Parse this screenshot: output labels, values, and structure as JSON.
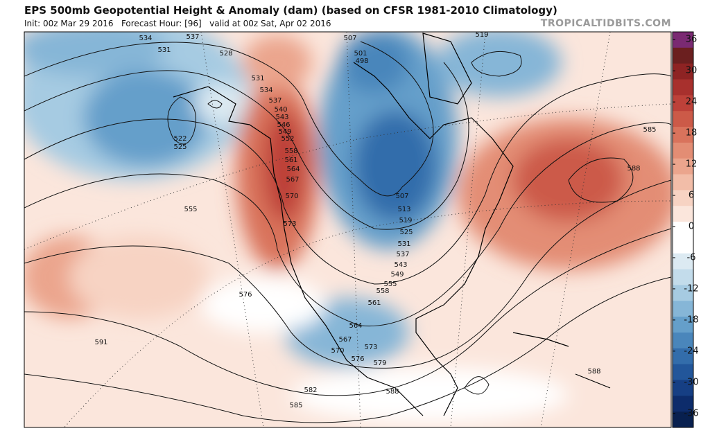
{
  "header": {
    "title": "EPS 500mb Geopotential Height & Anomaly (dam) (based on CFSR 1981-2010 Climatology)",
    "init": "Init: 00z Mar 29 2016   Forecast Hour: [96]   valid at 00z Sat, Apr 02 2016",
    "watermark": "TROPICALTIDBITS.COM"
  },
  "contour_labels": [
    534,
    537,
    531,
    528,
    507,
    501,
    498,
    519,
    531,
    534,
    537,
    540,
    543,
    546,
    549,
    552,
    558,
    561,
    564,
    567,
    570,
    573,
    522,
    525,
    555,
    585,
    588,
    507,
    513,
    519,
    525,
    531,
    537,
    543,
    549,
    555,
    558,
    561,
    564,
    567,
    570,
    573,
    576,
    579,
    576,
    591,
    582,
    585,
    588,
    588
  ],
  "colorbar": {
    "clim": [
      -38.7,
      37.5
    ],
    "ticks": [
      36,
      30,
      24,
      18,
      12,
      6,
      0,
      -6,
      -12,
      -18,
      -24,
      -30,
      -36
    ],
    "colors": [
      "#7a2a72",
      "#6b1f1f",
      "#8e2323",
      "#a8302d",
      "#bd4139",
      "#cc5a48",
      "#d9735c",
      "#e38d74",
      "#eba58d",
      "#f2bda8",
      "#f7d3c3",
      "#fbe6dc",
      "#ffffff",
      "#ffffff",
      "#dceaf2",
      "#c3dceb",
      "#a6cbe2",
      "#86b6d7",
      "#659fca",
      "#4a86bb",
      "#336dab",
      "#22569a",
      "#163f84",
      "#0d2c6b",
      "#08204f"
    ]
  }
}
